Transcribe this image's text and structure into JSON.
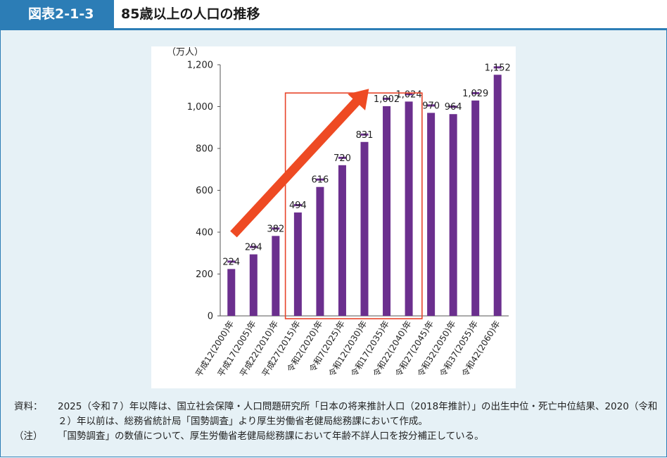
{
  "header": {
    "figure_number": "図表2-1-3",
    "title": "85歳以上の人口の推移"
  },
  "colors": {
    "accent": "#2c7db6",
    "bar": "#6b2f8e",
    "arrow": "#ee4a23",
    "highlight_box": "#e8452b",
    "panel_bg": "#e6f1f6"
  },
  "chart_data": {
    "type": "bar",
    "unit_label": "（万人）",
    "categories": [
      "平成12(2000)年",
      "平成17(2005)年",
      "平成22(2010)年",
      "平成27(2015)年",
      "令和2(2020)年",
      "令和7(2025)年",
      "令和12(2030)年",
      "令和17(2035)年",
      "令和22(2040)年",
      "令和27(2045)年",
      "令和32(2050)年",
      "令和37(2055)年",
      "令和42(2060)年"
    ],
    "values": [
      224,
      294,
      382,
      494,
      616,
      720,
      831,
      1002,
      1024,
      970,
      964,
      1029,
      1152
    ],
    "data_labels": [
      "224",
      "294",
      "382",
      "494",
      "616",
      "720",
      "831",
      "1,002",
      "1,024",
      "970",
      "964",
      "1,029",
      "1,152"
    ],
    "ylim": [
      0,
      1200
    ],
    "yticks": [
      0,
      200,
      400,
      600,
      800,
      1000,
      1200
    ],
    "ytick_labels": [
      "0",
      "200",
      "400",
      "600",
      "800",
      "1,000",
      "1,200"
    ],
    "grid": false,
    "highlight_range": [
      "平成27(2015)年",
      "令和22(2040)年"
    ],
    "trend_arrow": "increasing"
  },
  "notes": [
    {
      "key": "資料：",
      "text": "2025（令和７）年以降は、国立社会保障・人口問題研究所「日本の将来推計人口（2018年推計）」の出生中位・死亡中位結果、2020（令和２）年以前は、総務省統計局「国勢調査」より厚生労働省老健局総務課において作成。"
    },
    {
      "key": "（注）",
      "text": "「国勢調査」の数値について、厚生労働省老健局総務課において年齢不詳人口を按分補正している。"
    }
  ]
}
